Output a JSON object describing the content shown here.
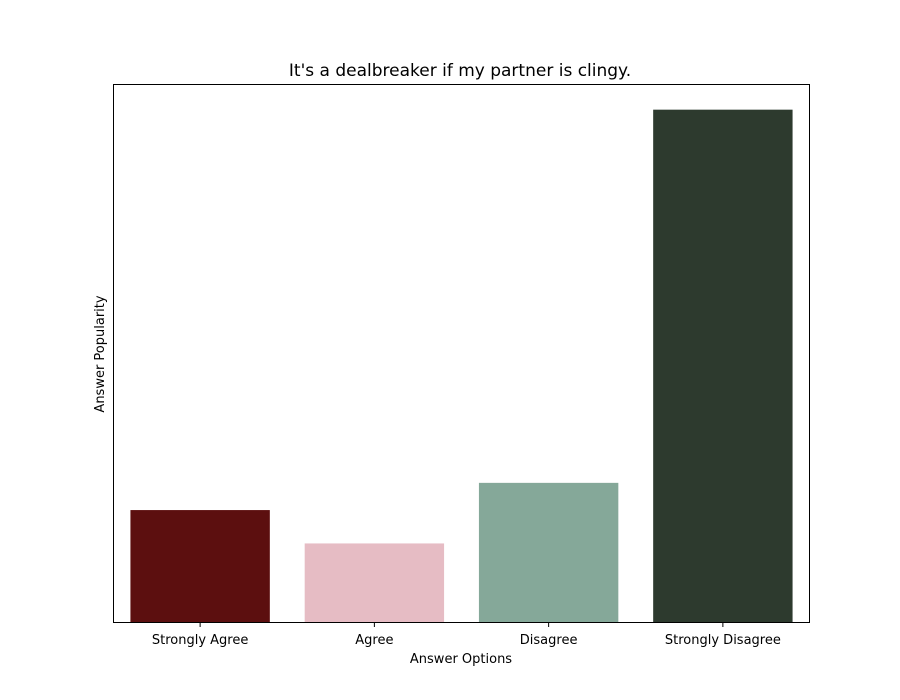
{
  "chart_data": {
    "type": "bar",
    "title": "It's a dealbreaker if my partner is clingy.",
    "xlabel": "Answer Options",
    "ylabel": "Answer Popularity",
    "categories": [
      "Strongly Agree",
      "Agree",
      "Disagree",
      "Strongly Disagree"
    ],
    "values": [
      22,
      15.5,
      27.3,
      100
    ],
    "ylim": [
      0,
      105
    ],
    "y_ticks_shown": false,
    "grid": false,
    "legend": "none",
    "colors": [
      "#5c0f0f",
      "#e6bcc4",
      "#85a899",
      "#2d3a2e"
    ]
  }
}
